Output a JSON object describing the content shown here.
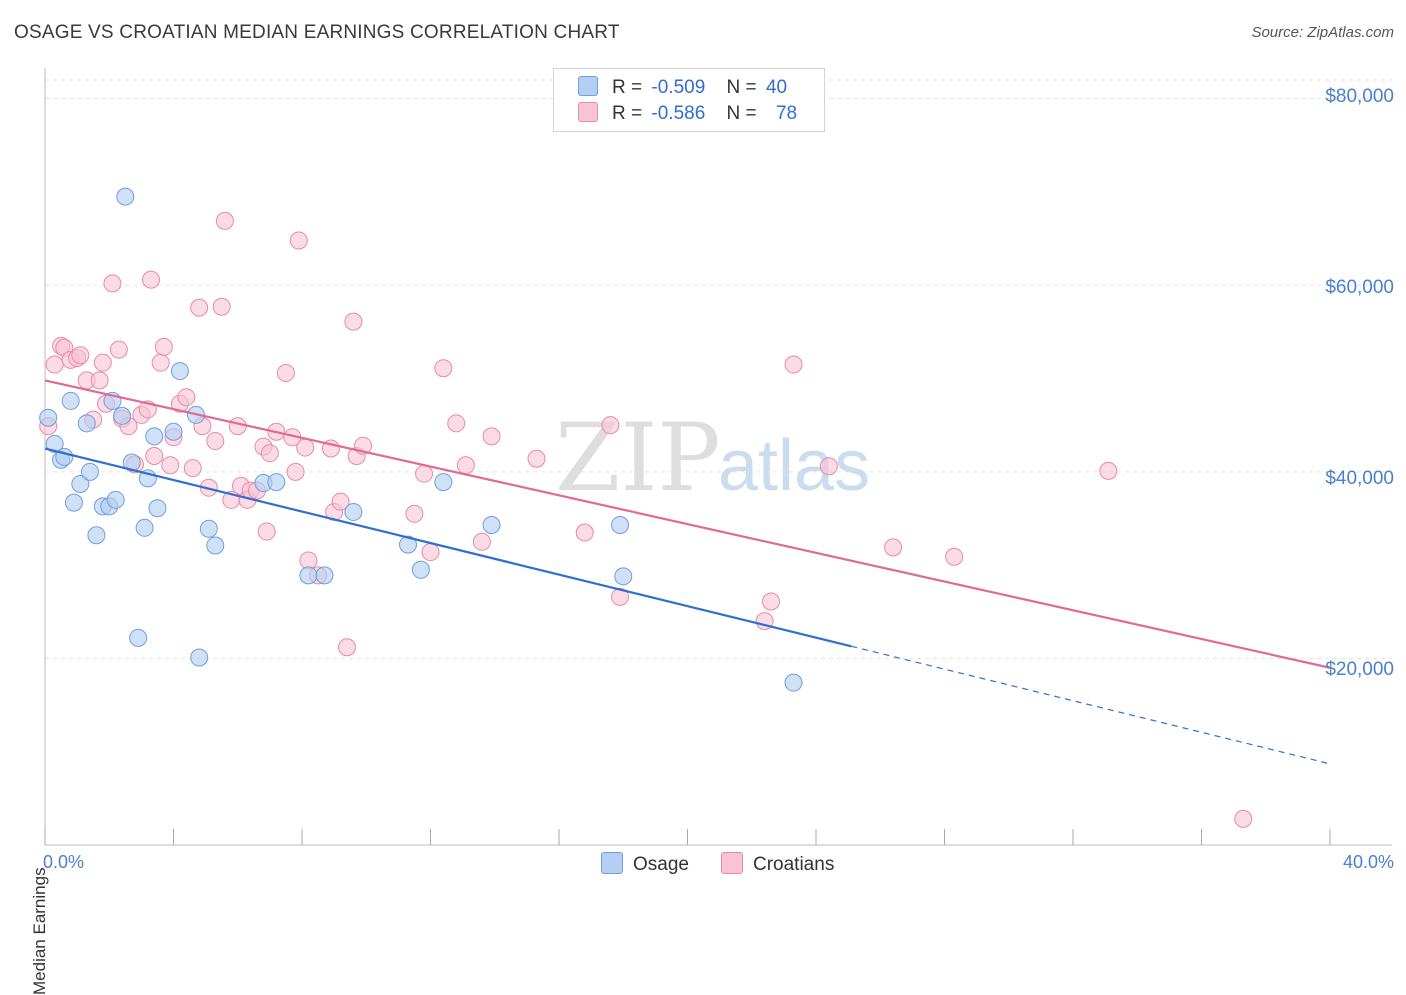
{
  "header": {
    "title": "OSAGE VS CROATIAN MEDIAN EARNINGS CORRELATION CHART",
    "source": "Source: ZipAtlas.com"
  },
  "watermark": {
    "zip": "ZIP",
    "atlas": "atlas"
  },
  "legend": {
    "osage": {
      "r_label": "R =",
      "r_value": "-0.509",
      "n_label": "N =",
      "n_value": "40"
    },
    "croatians": {
      "r_label": "R =",
      "r_value": "-0.586",
      "n_label": "N =",
      "n_value": "78"
    }
  },
  "bottom_legend": {
    "osage": "Osage",
    "croatians": "Croatians"
  },
  "colors": {
    "osage_fill": "#b5cff2",
    "osage_stroke": "#6f9fdc",
    "osage_line": "#2e6fcf",
    "croatians_fill": "#f8c3d3",
    "croatians_stroke": "#e98aa8",
    "croatians_line": "#e06a94",
    "axis_text": "#4a7fcf",
    "grid": "#e3e3e3"
  },
  "chart_data": {
    "type": "scatter",
    "title": "OSAGE VS CROATIAN MEDIAN EARNINGS CORRELATION CHART",
    "xlabel": "",
    "ylabel": "Median Earnings",
    "xlim": [
      0,
      40
    ],
    "ylim": [
      0,
      82000
    ],
    "x_tick_labels": [
      "0.0%",
      "40.0%"
    ],
    "y_ticks": [
      20000,
      40000,
      60000,
      80000
    ],
    "y_tick_labels": [
      "$20,000",
      "$40,000",
      "$60,000",
      "$80,000"
    ],
    "series": [
      {
        "name": "Osage",
        "r": -0.509,
        "n": 40,
        "trend": {
          "x0": 0,
          "y0": 42500,
          "x1": 25.1,
          "y1": 21300,
          "dashed_to_x": 40,
          "dashed_to_y": 8700
        },
        "points": [
          [
            0.1,
            45800
          ],
          [
            0.3,
            43000
          ],
          [
            0.5,
            41300
          ],
          [
            0.6,
            41600
          ],
          [
            0.8,
            47600
          ],
          [
            0.9,
            36700
          ],
          [
            1.1,
            38700
          ],
          [
            1.3,
            45200
          ],
          [
            1.4,
            40000
          ],
          [
            1.6,
            33200
          ],
          [
            1.8,
            36300
          ],
          [
            2.0,
            36300
          ],
          [
            2.1,
            47600
          ],
          [
            2.2,
            37000
          ],
          [
            2.4,
            46000
          ],
          [
            2.5,
            69500
          ],
          [
            2.7,
            41000
          ],
          [
            2.9,
            22200
          ],
          [
            3.1,
            34000
          ],
          [
            3.2,
            39300
          ],
          [
            3.4,
            43800
          ],
          [
            3.5,
            36100
          ],
          [
            4.0,
            44300
          ],
          [
            4.2,
            50800
          ],
          [
            4.7,
            46100
          ],
          [
            4.8,
            20100
          ],
          [
            5.1,
            33900
          ],
          [
            5.3,
            32100
          ],
          [
            6.8,
            38800
          ],
          [
            7.2,
            38900
          ],
          [
            8.2,
            28900
          ],
          [
            8.7,
            28900
          ],
          [
            9.6,
            35700
          ],
          [
            11.3,
            32200
          ],
          [
            11.7,
            29500
          ],
          [
            12.4,
            38900
          ],
          [
            13.9,
            34300
          ],
          [
            17.9,
            34300
          ],
          [
            18.0,
            28800
          ],
          [
            23.3,
            17400
          ]
        ]
      },
      {
        "name": "Croatians",
        "r": -0.586,
        "n": 78,
        "trend": {
          "x0": 0,
          "y0": 49800,
          "x1": 40,
          "y1": 19000
        },
        "points": [
          [
            0.1,
            44900
          ],
          [
            0.3,
            51500
          ],
          [
            0.5,
            53500
          ],
          [
            0.6,
            53300
          ],
          [
            0.8,
            52000
          ],
          [
            1.0,
            52200
          ],
          [
            1.1,
            52500
          ],
          [
            1.3,
            49800
          ],
          [
            1.5,
            45600
          ],
          [
            1.7,
            49800
          ],
          [
            1.8,
            51700
          ],
          [
            1.9,
            47300
          ],
          [
            2.1,
            60200
          ],
          [
            2.3,
            53100
          ],
          [
            2.4,
            45700
          ],
          [
            2.6,
            44900
          ],
          [
            2.8,
            40800
          ],
          [
            3.0,
            46100
          ],
          [
            3.2,
            46700
          ],
          [
            3.3,
            60600
          ],
          [
            3.4,
            41700
          ],
          [
            3.6,
            51700
          ],
          [
            3.7,
            53400
          ],
          [
            3.9,
            40700
          ],
          [
            4.0,
            43700
          ],
          [
            4.2,
            47300
          ],
          [
            4.4,
            48000
          ],
          [
            4.6,
            40400
          ],
          [
            4.8,
            57600
          ],
          [
            4.9,
            44900
          ],
          [
            5.1,
            38300
          ],
          [
            5.3,
            43300
          ],
          [
            5.5,
            57700
          ],
          [
            5.6,
            66900
          ],
          [
            5.8,
            37000
          ],
          [
            6.0,
            44900
          ],
          [
            6.1,
            38500
          ],
          [
            6.3,
            37000
          ],
          [
            6.4,
            38000
          ],
          [
            6.6,
            38000
          ],
          [
            6.8,
            42700
          ],
          [
            6.9,
            33600
          ],
          [
            7.0,
            42000
          ],
          [
            7.2,
            44300
          ],
          [
            7.5,
            50600
          ],
          [
            7.7,
            43700
          ],
          [
            7.8,
            40000
          ],
          [
            7.9,
            64800
          ],
          [
            8.1,
            42600
          ],
          [
            8.2,
            30500
          ],
          [
            8.5,
            28900
          ],
          [
            8.9,
            42500
          ],
          [
            9.0,
            35700
          ],
          [
            9.2,
            36800
          ],
          [
            9.4,
            21200
          ],
          [
            9.6,
            56100
          ],
          [
            9.7,
            41700
          ],
          [
            9.9,
            42800
          ],
          [
            11.5,
            35500
          ],
          [
            11.8,
            39800
          ],
          [
            12.0,
            31400
          ],
          [
            12.4,
            51100
          ],
          [
            12.8,
            45200
          ],
          [
            13.1,
            40700
          ],
          [
            13.6,
            32500
          ],
          [
            13.9,
            43800
          ],
          [
            15.3,
            41400
          ],
          [
            16.8,
            33500
          ],
          [
            17.6,
            45000
          ],
          [
            17.9,
            26600
          ],
          [
            22.4,
            24000
          ],
          [
            22.6,
            26100
          ],
          [
            23.3,
            51500
          ],
          [
            24.4,
            40600
          ],
          [
            26.4,
            31900
          ],
          [
            28.3,
            30900
          ],
          [
            33.1,
            40100
          ],
          [
            37.3,
            2800
          ]
        ]
      }
    ]
  }
}
